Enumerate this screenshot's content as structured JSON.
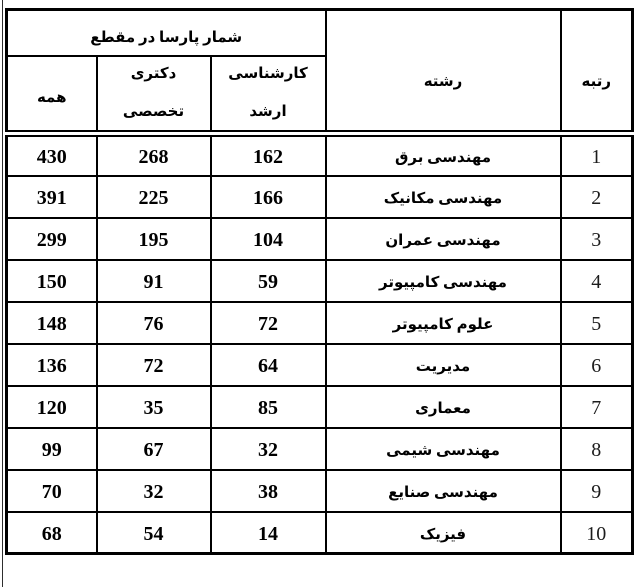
{
  "chart_data": {
    "type": "table",
    "title": "شمار پارسا در مقطع",
    "columns": [
      "رتبه",
      "رشته",
      "کارشناسی ارشد",
      "دکتری تخصصی",
      "همه"
    ],
    "rows": [
      {
        "rank": "1",
        "field": "مهندسی برق",
        "masters": "162",
        "phd": "268",
        "total": "430"
      },
      {
        "rank": "2",
        "field": "مهندسی مکانیک",
        "masters": "166",
        "phd": "225",
        "total": "391"
      },
      {
        "rank": "3",
        "field": "مهندسی عمران",
        "masters": "104",
        "phd": "195",
        "total": "299"
      },
      {
        "rank": "4",
        "field": "مهندسی کامپیوتر",
        "masters": "59",
        "phd": "91",
        "total": "150"
      },
      {
        "rank": "5",
        "field": "علوم کامپیوتر",
        "masters": "72",
        "phd": "76",
        "total": "148"
      },
      {
        "rank": "6",
        "field": "مدیریت",
        "masters": "64",
        "phd": "72",
        "total": "136"
      },
      {
        "rank": "7",
        "field": "معماری",
        "masters": "85",
        "phd": "35",
        "total": "120"
      },
      {
        "rank": "8",
        "field": "مهندسی شیمی",
        "masters": "32",
        "phd": "67",
        "total": "99"
      },
      {
        "rank": "9",
        "field": "مهندسی صنایع",
        "masters": "38",
        "phd": "32",
        "total": "70"
      },
      {
        "rank": "10",
        "field": "فیزیک",
        "masters": "14",
        "phd": "54",
        "total": "68"
      }
    ]
  },
  "header": {
    "group_title": "شمار پارسا در مقطع",
    "rank": "رتبه",
    "field": "رشته",
    "masters_line1": "کارشناسی",
    "masters_line2": "ارشد",
    "phd_line1": "دکتری",
    "phd_line2": "تخصصی",
    "total": "همه"
  }
}
